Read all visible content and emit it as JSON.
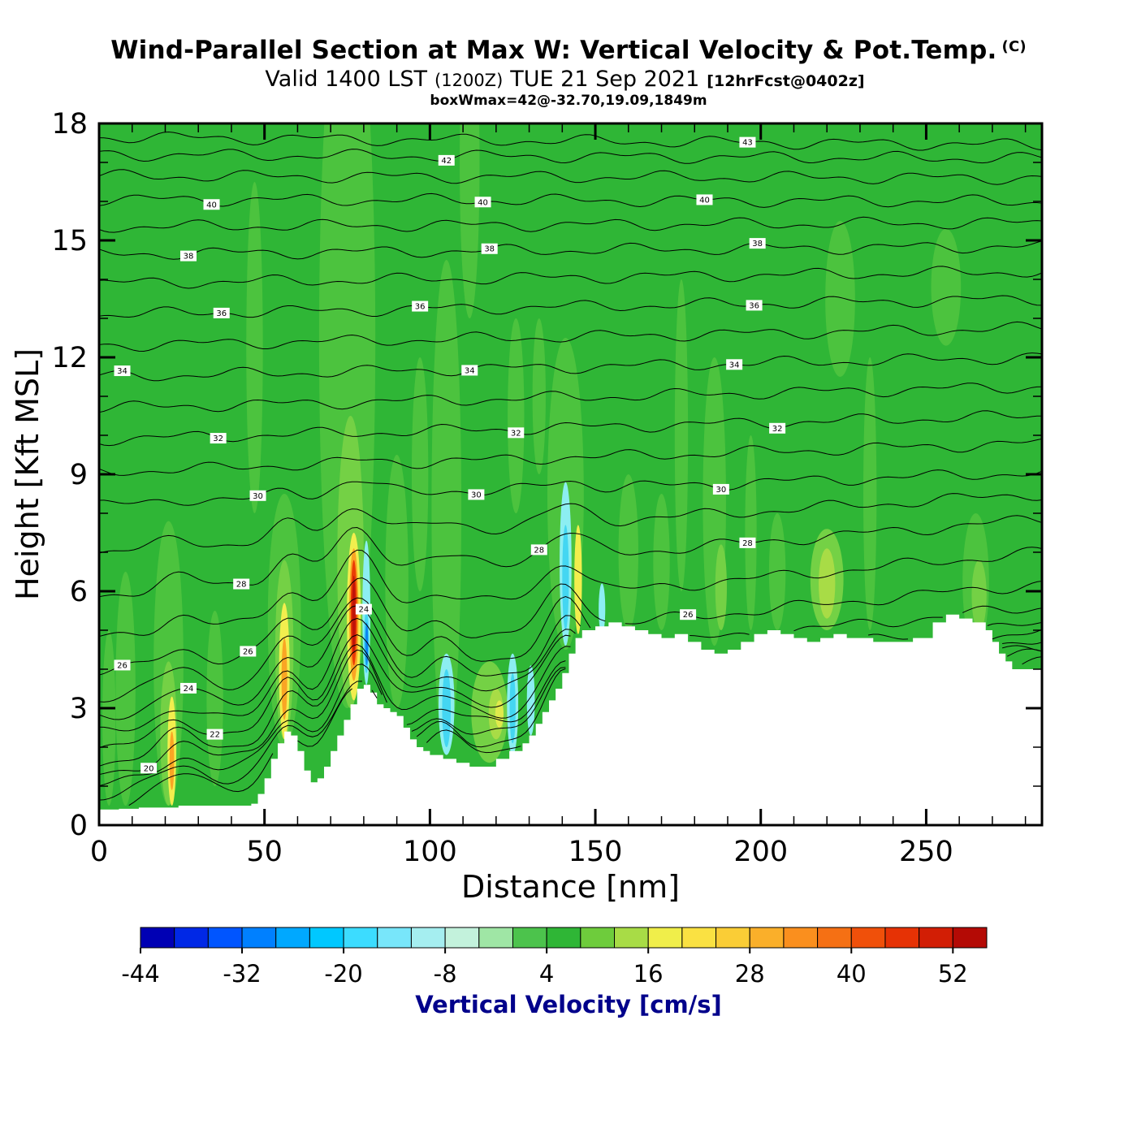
{
  "header": {
    "title": "Wind-Parallel Section at Max W: Vertical Velocity & Pot.Temp.",
    "title_unit": "(C)",
    "subtitle_prefix": "Valid 1400 LST",
    "subtitle_paren": "(1200Z)",
    "subtitle_date": "TUE 21 Sep 2021",
    "subtitle_bracket": "[12hrFcst@0402z]",
    "annotation": "boxWmax=42@-32.70,19.09,1849m"
  },
  "chart_data": {
    "type": "heatmap",
    "title": "Wind-Parallel Section at Max W: Vertical Velocity & Pot.Temp. (C)",
    "subtitle": "Valid 1400 LST (1200Z) TUE 21 Sep 2021 [12hrFcst@0402z]",
    "annotation": "boxWmax=42@-32.70,19.09,1849m",
    "xlabel": "Distance [nm]",
    "ylabel": "Height [Kft MSL]",
    "xlim": [
      0,
      285
    ],
    "ylim": [
      0,
      18
    ],
    "xticks": [
      0,
      50,
      100,
      150,
      200,
      250
    ],
    "x_minor_step": 10,
    "yticks": [
      0,
      3,
      6,
      9,
      12,
      15,
      18
    ],
    "y_minor_step": 1,
    "grid": false,
    "background_color": "#2fb636",
    "colorbar": {
      "label": "Vertical Velocity [cm/s]",
      "min": -44,
      "max": 56,
      "step": 4,
      "tick_labels": [
        -44,
        -32,
        -20,
        -8,
        4,
        16,
        28,
        40,
        52
      ],
      "colors": [
        "#0000b4",
        "#0028e6",
        "#0055ff",
        "#0080ff",
        "#00a8ff",
        "#00c8ff",
        "#3cdcff",
        "#78e6fa",
        "#a5eef0",
        "#c3f2dc",
        "#9fe6a5",
        "#4cc34c",
        "#2fb636",
        "#6ecc3c",
        "#a8dc46",
        "#f0ee4a",
        "#fae142",
        "#facd36",
        "#faaf2a",
        "#fa8f1e",
        "#f57014",
        "#f0500a",
        "#e63205",
        "#d21e05",
        "#b40a05"
      ]
    },
    "terrain": {
      "color": "#ffffff",
      "profile": [
        [
          0,
          0.4
        ],
        [
          6,
          0.42
        ],
        [
          12,
          0.45
        ],
        [
          18,
          0.45
        ],
        [
          24,
          0.5
        ],
        [
          30,
          0.5
        ],
        [
          36,
          0.5
        ],
        [
          42,
          0.5
        ],
        [
          46,
          0.55
        ],
        [
          48,
          0.8
        ],
        [
          50,
          1.2
        ],
        [
          52,
          1.7
        ],
        [
          54,
          2.1
        ],
        [
          56,
          2.4
        ],
        [
          58,
          2.3
        ],
        [
          60,
          1.9
        ],
        [
          62,
          1.4
        ],
        [
          64,
          1.1
        ],
        [
          66,
          1.2
        ],
        [
          68,
          1.5
        ],
        [
          70,
          1.9
        ],
        [
          72,
          2.3
        ],
        [
          74,
          2.7
        ],
        [
          76,
          3.1
        ],
        [
          78,
          3.5
        ],
        [
          80,
          3.6
        ],
        [
          82,
          3.4
        ],
        [
          84,
          3.1
        ],
        [
          86,
          3
        ],
        [
          88,
          2.9
        ],
        [
          90,
          2.8
        ],
        [
          92,
          2.5
        ],
        [
          94,
          2.2
        ],
        [
          96,
          2
        ],
        [
          98,
          1.9
        ],
        [
          100,
          1.8
        ],
        [
          104,
          1.7
        ],
        [
          108,
          1.6
        ],
        [
          112,
          1.5
        ],
        [
          116,
          1.5
        ],
        [
          120,
          1.7
        ],
        [
          124,
          1.9
        ],
        [
          128,
          2.1
        ],
        [
          130,
          2.3
        ],
        [
          132,
          2.6
        ],
        [
          134,
          2.9
        ],
        [
          136,
          3.2
        ],
        [
          138,
          3.5
        ],
        [
          140,
          3.9
        ],
        [
          142,
          4.4
        ],
        [
          144,
          4.8
        ],
        [
          146,
          5
        ],
        [
          150,
          5.1
        ],
        [
          154,
          5.2
        ],
        [
          158,
          5.1
        ],
        [
          162,
          5
        ],
        [
          166,
          4.9
        ],
        [
          170,
          4.8
        ],
        [
          174,
          4.9
        ],
        [
          178,
          4.7
        ],
        [
          182,
          4.5
        ],
        [
          186,
          4.4
        ],
        [
          190,
          4.5
        ],
        [
          194,
          4.7
        ],
        [
          198,
          4.9
        ],
        [
          202,
          5
        ],
        [
          206,
          4.9
        ],
        [
          210,
          4.8
        ],
        [
          214,
          4.7
        ],
        [
          218,
          4.8
        ],
        [
          222,
          4.9
        ],
        [
          226,
          4.8
        ],
        [
          230,
          4.8
        ],
        [
          234,
          4.7
        ],
        [
          238,
          4.7
        ],
        [
          242,
          4.7
        ],
        [
          246,
          4.8
        ],
        [
          250,
          4.8
        ],
        [
          252,
          5.2
        ],
        [
          256,
          5.4
        ],
        [
          260,
          5.3
        ],
        [
          264,
          5.2
        ],
        [
          268,
          5
        ],
        [
          270,
          4.7
        ],
        [
          272,
          4.4
        ],
        [
          274,
          4.2
        ],
        [
          276,
          4
        ],
        [
          285,
          4
        ]
      ]
    },
    "isentropes": {
      "color": "#000000",
      "units": "C",
      "levels": [
        {
          "theta": 17,
          "h_left": 0.5,
          "h_right": 3.8
        },
        {
          "theta": 18,
          "h_left": 0.75,
          "h_right": 4.0
        },
        {
          "theta": 19,
          "h_left": 1.0,
          "h_right": 4.2
        },
        {
          "theta": 20,
          "h_left": 1.3,
          "h_right": 4.4,
          "labels": [
            15
          ]
        },
        {
          "theta": 21,
          "h_left": 1.6,
          "h_right": 4.6
        },
        {
          "theta": 22,
          "h_left": 1.95,
          "h_right": 4.8,
          "labels": [
            35
          ]
        },
        {
          "theta": 23,
          "h_left": 2.35,
          "h_right": 4.95
        },
        {
          "theta": 24,
          "h_left": 2.8,
          "h_right": 5.15,
          "labels": [
            27,
            80
          ]
        },
        {
          "theta": 25,
          "h_left": 3.3,
          "h_right": 5.6
        },
        {
          "theta": 26,
          "h_left": 3.9,
          "h_right": 6.2,
          "labels": [
            7,
            45,
            178
          ]
        },
        {
          "theta": 27,
          "h_left": 4.8,
          "h_right": 7.0
        },
        {
          "theta": 28,
          "h_left": 5.9,
          "h_right": 7.85,
          "labels": [
            43,
            133,
            196
          ]
        },
        {
          "theta": 29,
          "h_left": 7.0,
          "h_right": 8.5
        },
        {
          "theta": 30,
          "h_left": 8.2,
          "h_right": 9.05,
          "labels": [
            48,
            114,
            188
          ]
        },
        {
          "theta": 31,
          "h_left": 9.05,
          "h_right": 9.8
        },
        {
          "theta": 32,
          "h_left": 9.9,
          "h_right": 10.5,
          "labels": [
            36,
            126,
            205
          ]
        },
        {
          "theta": 33,
          "h_left": 10.7,
          "h_right": 11.25
        },
        {
          "theta": 34,
          "h_left": 11.5,
          "h_right": 12.0,
          "labels": [
            7,
            112,
            192
          ]
        },
        {
          "theta": 35,
          "h_left": 12.3,
          "h_right": 12.75
        },
        {
          "theta": 36,
          "h_left": 13.1,
          "h_right": 13.5,
          "labels": [
            37,
            97,
            198
          ]
        },
        {
          "theta": 37,
          "h_left": 13.9,
          "h_right": 14.2
        },
        {
          "theta": 38,
          "h_left": 14.65,
          "h_right": 14.85,
          "labels": [
            27,
            118,
            199
          ]
        },
        {
          "theta": 39,
          "h_left": 15.35,
          "h_right": 15.45
        },
        {
          "theta": 40,
          "h_left": 16.05,
          "h_right": 16.0,
          "labels": [
            34,
            116,
            183
          ]
        },
        {
          "theta": 41,
          "h_left": 16.65,
          "h_right": 16.6
        },
        {
          "theta": 42,
          "h_left": 17.2,
          "h_right": 17.1,
          "labels": [
            105
          ]
        },
        {
          "theta": 43,
          "h_left": 17.65,
          "h_right": 17.45,
          "labels": [
            196
          ]
        }
      ]
    },
    "velocity_cells": [
      [
        3,
        4,
        0.5,
        5,
        "#4cc33e"
      ],
      [
        8,
        6,
        0.5,
        6.5,
        "#4cc33e"
      ],
      [
        21,
        9,
        0.5,
        7.8,
        "#4cc33e"
      ],
      [
        21,
        5,
        0.5,
        4.2,
        "#74d145"
      ],
      [
        35,
        5,
        1,
        5.5,
        "#4cc33e"
      ],
      [
        47,
        5,
        8,
        16.5,
        "#4cc33e"
      ],
      [
        56,
        10,
        2,
        8.5,
        "#4cc33e"
      ],
      [
        56,
        5.5,
        2.2,
        6.8,
        "#74d145"
      ],
      [
        75,
        17,
        3,
        22,
        "#4cc33e"
      ],
      [
        76,
        8,
        3,
        10.5,
        "#74d145"
      ],
      [
        90,
        7,
        3,
        9.5,
        "#4cc33e"
      ],
      [
        97,
        5,
        6,
        12,
        "#4cc33e"
      ],
      [
        105,
        9,
        1.8,
        14.5,
        "#4cc33e"
      ],
      [
        112,
        6,
        13,
        21,
        "#4cc33e"
      ],
      [
        118,
        11,
        1.6,
        4.2,
        "#74d145"
      ],
      [
        126,
        5,
        8,
        13,
        "#4cc33e"
      ],
      [
        133,
        4,
        9,
        13,
        "#4cc33e"
      ],
      [
        141,
        11,
        4.5,
        12.5,
        "#4cc33e"
      ],
      [
        160,
        6,
        5,
        9,
        "#4cc33e"
      ],
      [
        170,
        5,
        5,
        8.5,
        "#4cc33e"
      ],
      [
        176,
        4,
        6,
        14,
        "#4cc33e"
      ],
      [
        186,
        7,
        4.6,
        12,
        "#4cc33e"
      ],
      [
        188,
        3.5,
        5,
        7.2,
        "#74d145"
      ],
      [
        197,
        3.5,
        5,
        10,
        "#4cc33e"
      ],
      [
        205,
        5,
        5,
        8,
        "#4cc33e"
      ],
      [
        220,
        10,
        5,
        7.6,
        "#74d145"
      ],
      [
        220,
        5,
        5.3,
        7.1,
        "#a8dc46"
      ],
      [
        224,
        9,
        11.5,
        15.5,
        "#4cc33e"
      ],
      [
        233,
        4,
        5,
        12,
        "#4cc33e"
      ],
      [
        256,
        9,
        12.3,
        15.3,
        "#4cc33e"
      ],
      [
        265,
        8,
        4.5,
        8,
        "#4cc33e"
      ],
      [
        266,
        4.5,
        5,
        6.8,
        "#74d145"
      ],
      [
        120,
        4.5,
        2.2,
        3.5,
        "#a8dc46"
      ],
      [
        121,
        2.5,
        2.5,
        3.2,
        "#e0ea4c"
      ],
      [
        22,
        2.6,
        0.5,
        3.3,
        "#f2ee4e"
      ],
      [
        22,
        1.4,
        0.9,
        2.4,
        "#faa524"
      ],
      [
        56,
        3.2,
        2.2,
        5.7,
        "#f2ee4e"
      ],
      [
        56,
        1.7,
        2.7,
        4.8,
        "#faa524"
      ],
      [
        77,
        4.2,
        3.2,
        7.5,
        "#f2ee4e"
      ],
      [
        77,
        2.8,
        3.7,
        7.1,
        "#faa524"
      ],
      [
        77,
        1.9,
        4.1,
        6.8,
        "#ea3c05"
      ],
      [
        77,
        1.1,
        4.4,
        6.4,
        "#c01309"
      ],
      [
        80.8,
        2.4,
        3.6,
        7.3,
        "#8ceef2"
      ],
      [
        80.8,
        1.5,
        3.9,
        5.5,
        "#44d6f2"
      ],
      [
        80.9,
        0.9,
        4.1,
        5.2,
        "#0c86f0"
      ],
      [
        105,
        4.8,
        1.8,
        4.4,
        "#8ceef2"
      ],
      [
        105,
        2.6,
        2,
        4,
        "#44d6f2"
      ],
      [
        125,
        3.4,
        1.8,
        4.4,
        "#8ceef2"
      ],
      [
        125,
        1.8,
        2.1,
        3.9,
        "#44d6f2"
      ],
      [
        130.5,
        2.4,
        2.3,
        4.1,
        "#8ceef2"
      ],
      [
        141,
        3.6,
        4.6,
        8.8,
        "#8ceef2"
      ],
      [
        141,
        2,
        5,
        7.7,
        "#44d6f2"
      ],
      [
        144.8,
        2.3,
        4.9,
        7.7,
        "#f2ee4e"
      ],
      [
        152,
        2,
        4.9,
        6.2,
        "#8ceef2"
      ]
    ]
  }
}
